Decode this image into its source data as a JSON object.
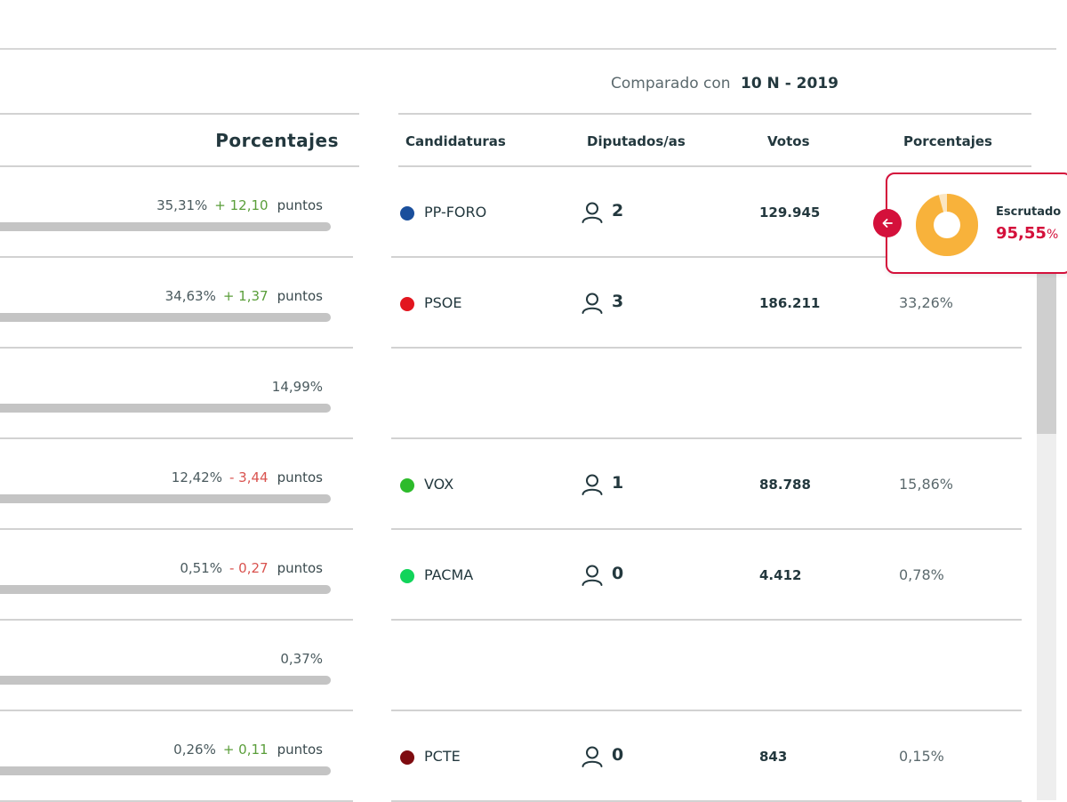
{
  "left_panel": {
    "title": "Porcentajes",
    "rows": [
      {
        "pct": "35,31%",
        "change": "+ 12,10",
        "change_dir": "pos",
        "points_label": "puntos"
      },
      {
        "pct": "34,63%",
        "change": "+ 1,37",
        "change_dir": "pos",
        "points_label": "puntos"
      },
      {
        "pct": "14,99%",
        "change": "",
        "change_dir": "",
        "points_label": ""
      },
      {
        "pct": "12,42%",
        "change": "- 3,44",
        "change_dir": "neg",
        "points_label": "puntos"
      },
      {
        "pct": "0,51%",
        "change": "- 0,27",
        "change_dir": "neg",
        "points_label": "puntos"
      },
      {
        "pct": "0,37%",
        "change": "",
        "change_dir": "",
        "points_label": ""
      },
      {
        "pct": "0,26%",
        "change": "+ 0,11",
        "change_dir": "pos",
        "points_label": "puntos"
      }
    ]
  },
  "comparison": {
    "label": "Comparado con",
    "election": "10 N - 2019"
  },
  "right_panel": {
    "headers": {
      "candidaturas": "Candidaturas",
      "diputados": "Diputados/as",
      "votos": "Votos",
      "porcentajes": "Porcentajes"
    },
    "rows": [
      {
        "party": "PP-FORO",
        "color": "#1a4f9c",
        "seats": "2",
        "votes": "129.945",
        "pct": ""
      },
      {
        "party": "PSOE",
        "color": "#e2161f",
        "seats": "3",
        "votes": "186.211",
        "pct": "33,26%"
      },
      {
        "party": "",
        "color": "",
        "seats": "",
        "votes": "",
        "pct": ""
      },
      {
        "party": "VOX",
        "color": "#2dbb2b",
        "seats": "1",
        "votes": "88.788",
        "pct": "15,86%"
      },
      {
        "party": "PACMA",
        "color": "#11d45a",
        "seats": "0",
        "votes": "4.412",
        "pct": "0,78%"
      },
      {
        "party": "",
        "color": "",
        "seats": "",
        "votes": "",
        "pct": ""
      },
      {
        "party": "PCTE",
        "color": "#7e0b10",
        "seats": "0",
        "votes": "843",
        "pct": "0,15%"
      }
    ]
  },
  "scrutiny": {
    "label": "Escrutado",
    "value": "95,55",
    "unit": "%",
    "fraction": 0.9555,
    "fill_color": "#f8b23b",
    "rest_color": "#fbe6c2"
  },
  "icons": {
    "back": "arrow-left-icon",
    "seat": "person-icon"
  }
}
